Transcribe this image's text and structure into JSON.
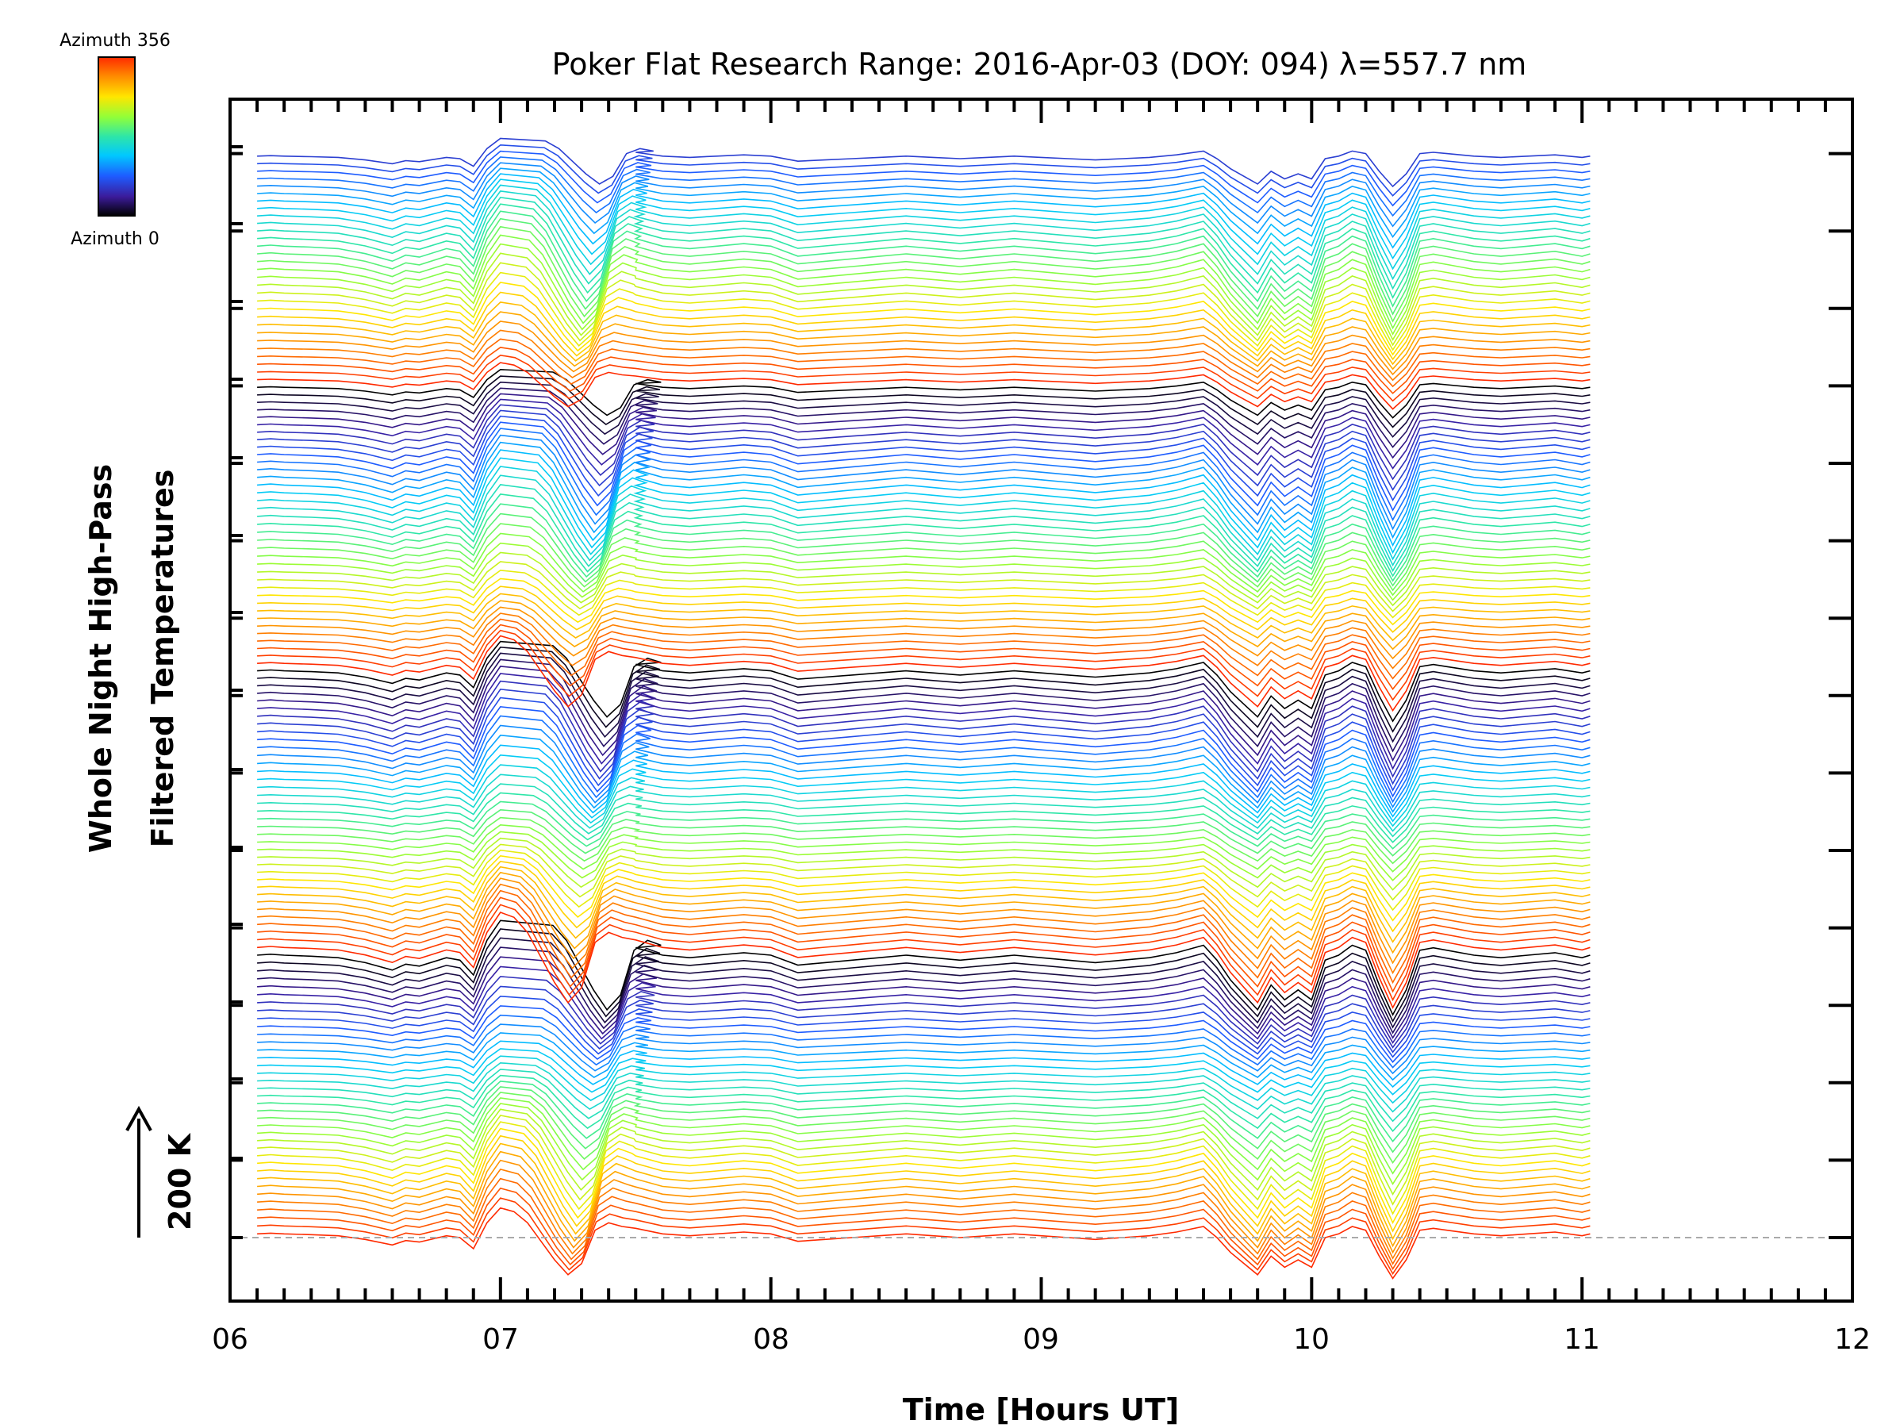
{
  "chart_data": {
    "type": "line",
    "title": "Poker Flat Research Range: 2016-Apr-03 (DOY: 094) λ=557.7 nm",
    "xlabel": "Time [Hours UT]",
    "ylabel_line1": "Whole Night High-Pass",
    "ylabel_line2": "Filtered Temperatures",
    "scale_label": "200 K",
    "xlim": [
      6,
      12
    ],
    "x_ticks": [
      "06",
      "07",
      "08",
      "09",
      "10",
      "11",
      "12"
    ],
    "grid": false,
    "baseline_dashed": true,
    "colorbar": {
      "top_label": "Azimuth 356",
      "bottom_label": "Azimuth 0",
      "colormap": "rainbow",
      "colors": [
        "#000000",
        "#3b1b9a",
        "#1e5cff",
        "#00c8ff",
        "#2ee6a8",
        "#8fff3a",
        "#ffe600",
        "#ff8a00",
        "#ff2a00"
      ]
    },
    "series_count": 141,
    "series_offset_step_K": 25,
    "x": [
      6.1,
      6.15,
      6.2,
      6.3,
      6.4,
      6.5,
      6.6,
      6.65,
      6.7,
      6.8,
      6.85,
      6.9,
      6.95,
      7.0,
      7.05,
      7.1,
      7.15,
      7.2,
      7.25,
      7.3,
      7.35,
      7.4,
      7.45,
      7.5,
      7.6,
      7.7,
      7.8,
      7.9,
      8.0,
      8.1,
      8.2,
      8.3,
      8.4,
      8.5,
      8.6,
      8.7,
      8.8,
      8.9,
      9.0,
      9.1,
      9.2,
      9.3,
      9.4,
      9.5,
      9.6,
      9.65,
      9.7,
      9.75,
      9.8,
      9.85,
      9.9,
      9.95,
      10.0,
      10.05,
      10.1,
      10.15,
      10.2,
      10.25,
      10.3,
      10.35,
      10.4,
      10.45,
      10.5,
      10.6,
      10.7,
      10.8,
      10.9,
      11.0,
      11.03
    ],
    "representative_profile_K": [
      10,
      12,
      10,
      8,
      5,
      -5,
      -20,
      -8,
      -12,
      5,
      0,
      -30,
      40,
      80,
      70,
      40,
      -10,
      -60,
      -100,
      -70,
      20,
      40,
      30,
      25,
      10,
      5,
      10,
      15,
      10,
      -10,
      -5,
      0,
      5,
      10,
      5,
      0,
      5,
      10,
      5,
      0,
      -5,
      0,
      5,
      15,
      30,
      0,
      -40,
      -70,
      -100,
      -50,
      -80,
      -60,
      -80,
      0,
      10,
      30,
      20,
      -50,
      -110,
      -60,
      20,
      25,
      20,
      10,
      5,
      10,
      15,
      5,
      10
    ]
  }
}
